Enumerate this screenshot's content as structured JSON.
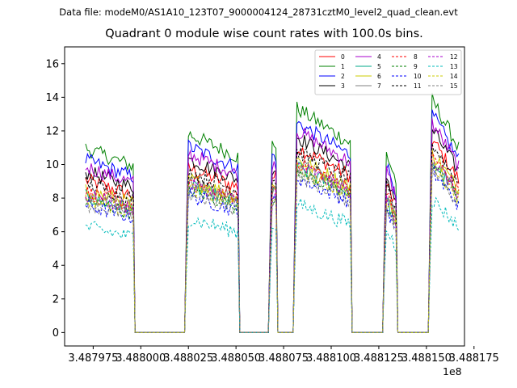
{
  "header": {
    "suptitle": "Data file: modeM0/AS1A10_123T07_9000004124_28731cztM0_level2_quad_clean.evt"
  },
  "chart_data": {
    "type": "line",
    "title": "Quadrant 0 module wise count rates with 100.0s bins.",
    "xlabel": "",
    "ylabel": "",
    "x_offset_label": "1e8",
    "xlim": [
      3.48796,
      3.48817
    ],
    "ylim": [
      -0.8,
      17
    ],
    "xticks": [
      3.487975,
      3.488,
      3.488025,
      3.48805,
      3.488075,
      3.4881,
      3.488125,
      3.48815,
      3.488175
    ],
    "xtick_labels": [
      "3.487975",
      "3.488000",
      "3.488025",
      "3.488050",
      "3.488075",
      "3.488100",
      "3.488125",
      "3.488150",
      "3.488175"
    ],
    "yticks": [
      0,
      2,
      4,
      6,
      8,
      10,
      12,
      14,
      16
    ],
    "ytick_labels": [
      "0",
      "2",
      "4",
      "6",
      "8",
      "10",
      "12",
      "14",
      "16"
    ],
    "segments": [
      {
        "start": 3.48797,
        "end": 3.487996,
        "level": 1.0,
        "decay": 0.1
      },
      {
        "start": 3.488024,
        "end": 3.488051,
        "level": 1.08,
        "decay": 0.12
      },
      {
        "start": 3.488068,
        "end": 3.488071,
        "level": 1.02,
        "decay": 0.0
      },
      {
        "start": 3.488081,
        "end": 3.48811,
        "level": 1.22,
        "decay": 0.16
      },
      {
        "start": 3.488128,
        "end": 3.488134,
        "level": 1.0,
        "decay": 0.18
      },
      {
        "start": 3.488152,
        "end": 3.488167,
        "level": 1.28,
        "decay": 0.22
      }
    ],
    "series": [
      {
        "name": "0",
        "color": "#ff0000",
        "dash": "solid",
        "base": 9.1
      },
      {
        "name": "1",
        "color": "#008000",
        "dash": "solid",
        "base": 11.0
      },
      {
        "name": "2",
        "color": "#0000ff",
        "dash": "solid",
        "base": 10.3
      },
      {
        "name": "3",
        "color": "#000000",
        "dash": "solid",
        "base": 9.6
      },
      {
        "name": "4",
        "color": "#aa00cc",
        "dash": "solid",
        "base": 9.9
      },
      {
        "name": "5",
        "color": "#00aa88",
        "dash": "solid",
        "base": 8.1
      },
      {
        "name": "6",
        "color": "#cccc00",
        "dash": "solid",
        "base": 8.5
      },
      {
        "name": "7",
        "color": "#808080",
        "dash": "solid",
        "base": 8.3
      },
      {
        "name": "8",
        "color": "#ff0000",
        "dash": "dashed",
        "base": 8.4
      },
      {
        "name": "9",
        "color": "#008000",
        "dash": "dashed",
        "base": 7.9
      },
      {
        "name": "10",
        "color": "#0000ff",
        "dash": "dashed",
        "base": 7.6
      },
      {
        "name": "11",
        "color": "#000000",
        "dash": "dashed",
        "base": 8.9
      },
      {
        "name": "12",
        "color": "#aa00cc",
        "dash": "dashed",
        "base": 8.2
      },
      {
        "name": "13",
        "color": "#00bbbb",
        "dash": "dashed",
        "base": 6.3
      },
      {
        "name": "14",
        "color": "#cccc00",
        "dash": "dashed",
        "base": 8.0
      },
      {
        "name": "15",
        "color": "#808080",
        "dash": "dashed",
        "base": 7.7
      }
    ]
  }
}
